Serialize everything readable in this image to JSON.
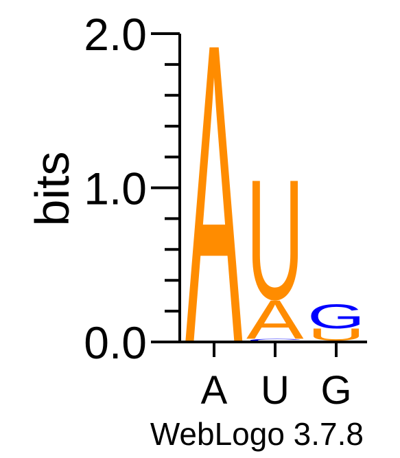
{
  "chart_data": {
    "type": "sequence_logo",
    "ylabel": "bits",
    "ylim": [
      0,
      2
    ],
    "y_ticks": [
      "0.0",
      "1.0",
      "2.0"
    ],
    "positions": [
      {
        "label": "A",
        "stack": [
          {
            "letter": "A",
            "bits": 2.0,
            "color": "#ff8c00"
          }
        ]
      },
      {
        "label": "U",
        "stack": [
          {
            "letter": "C",
            "bits": 0.02,
            "color": "#0000ff"
          },
          {
            "letter": "A",
            "bits": 0.26,
            "color": "#ff8c00"
          },
          {
            "letter": "U",
            "bits": 0.8,
            "color": "#ff8c00"
          }
        ]
      },
      {
        "label": "G",
        "stack": [
          {
            "letter": "A",
            "bits": 0.01,
            "color": "#ff8c00"
          },
          {
            "letter": "U",
            "bits": 0.08,
            "color": "#ff8c00"
          },
          {
            "letter": "G",
            "bits": 0.16,
            "color": "#0000ff"
          }
        ]
      }
    ],
    "footer": "WebLogo 3.7.8"
  }
}
